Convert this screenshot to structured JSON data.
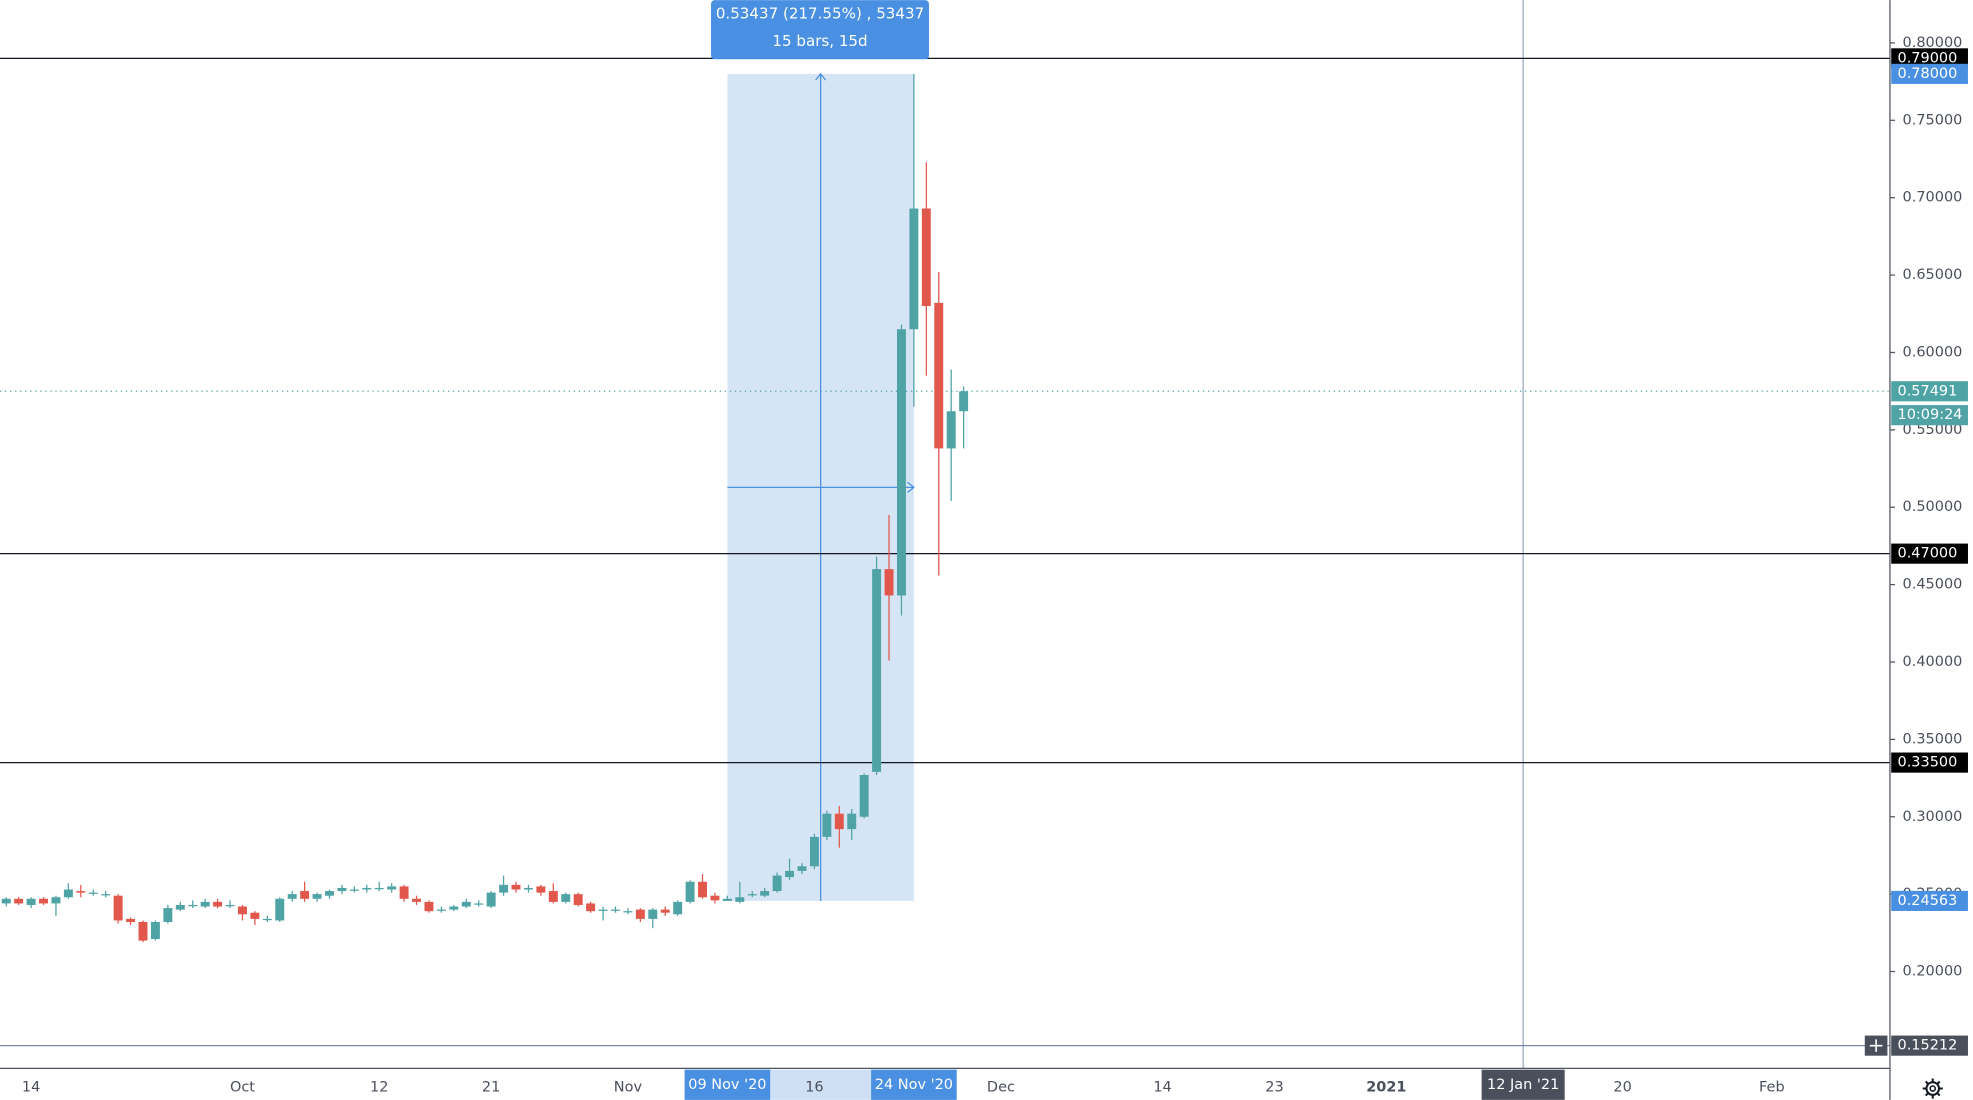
{
  "chart_data": {
    "type": "candlestick",
    "categories": [
      null,
      null,
      "14",
      null,
      null,
      null,
      null,
      null,
      null,
      null,
      null,
      null,
      null,
      null,
      null,
      null,
      null,
      null,
      null,
      "Oct",
      null,
      null,
      null,
      null,
      null,
      null,
      null,
      null,
      null,
      null,
      "12",
      null,
      null,
      null,
      null,
      null,
      null,
      null,
      null,
      "21",
      null,
      null,
      null,
      null,
      null,
      null,
      null,
      null,
      null,
      null,
      "Nov",
      null,
      null,
      null,
      null,
      null,
      null,
      null,
      "09 Nov '20",
      null,
      null,
      null,
      null,
      null,
      null,
      "16",
      null,
      null,
      null,
      null,
      null,
      null,
      null,
      "24 Nov '20",
      null,
      null,
      null,
      null,
      null,
      null,
      "Dec",
      null,
      null,
      null,
      null,
      null,
      null,
      null,
      null,
      null,
      null,
      null,
      null,
      "14",
      null,
      null,
      null,
      null,
      null,
      null,
      null,
      null,
      "23",
      null,
      null,
      null,
      null,
      null,
      null,
      null,
      null,
      "2021",
      null,
      null,
      null,
      null,
      null,
      null,
      null,
      null,
      null,
      null,
      "12 Jan '21",
      null,
      null,
      null,
      null,
      null,
      null,
      null,
      "20",
      null,
      null,
      null,
      null,
      null,
      null,
      null,
      null,
      null,
      null,
      null,
      "Feb",
      null,
      null,
      null,
      null,
      null,
      null,
      null,
      null,
      null
    ],
    "open": [
      0.244,
      0.247,
      0.243,
      0.247,
      0.244,
      0.248,
      0.252,
      0.251,
      0.25,
      0.249,
      0.234,
      0.232,
      0.221,
      0.232,
      0.24,
      0.243,
      0.242,
      0.245,
      0.243,
      0.242,
      0.238,
      0.234,
      0.233,
      0.247,
      0.252,
      0.247,
      0.249,
      0.252,
      0.253,
      0.253,
      0.254,
      0.253,
      0.255,
      0.247,
      0.245,
      0.24,
      0.24,
      0.242,
      0.244,
      0.242,
      0.251,
      0.256,
      0.253,
      0.255,
      0.252,
      0.245,
      0.25,
      0.244,
      0.24,
      0.24,
      0.239,
      0.24,
      0.234,
      0.24,
      0.237,
      0.245,
      0.258,
      0.249,
      0.2456,
      0.245,
      0.25,
      0.249,
      0.252,
      0.261,
      0.265,
      0.268,
      0.287,
      0.302,
      0.292,
      0.3,
      0.329,
      0.46,
      0.443,
      0.615,
      0.693,
      0.632,
      0.538,
      0.562,
      null,
      null,
      null,
      null,
      null,
      null,
      null,
      null,
      null,
      null,
      null,
      null,
      null,
      null,
      null,
      null,
      null,
      null,
      null,
      null,
      null,
      null,
      null,
      null,
      null,
      null,
      null,
      null,
      null,
      null,
      null,
      null,
      null,
      null,
      null,
      null,
      null,
      null,
      null,
      null,
      null,
      null,
      null,
      null,
      null,
      null,
      null,
      null,
      null,
      null,
      null,
      null,
      null,
      null,
      null,
      null,
      null,
      null,
      null,
      null,
      null,
      null,
      null,
      null,
      null,
      null,
      null,
      null,
      null,
      null,
      null,
      null,
      null,
      null
    ],
    "high": [
      0.248,
      0.248,
      0.248,
      0.248,
      0.249,
      0.257,
      0.256,
      0.253,
      0.252,
      0.25,
      0.235,
      0.233,
      0.233,
      0.243,
      0.245,
      0.246,
      0.247,
      0.247,
      0.246,
      0.243,
      0.239,
      0.236,
      0.248,
      0.252,
      0.258,
      0.251,
      0.253,
      0.256,
      0.255,
      0.256,
      0.258,
      0.257,
      0.256,
      0.249,
      0.246,
      0.242,
      0.243,
      0.247,
      0.246,
      0.252,
      0.262,
      0.258,
      0.256,
      0.256,
      0.257,
      0.251,
      0.251,
      0.245,
      0.242,
      0.242,
      0.241,
      0.241,
      0.241,
      0.242,
      0.246,
      0.259,
      0.263,
      0.251,
      0.249,
      0.258,
      0.252,
      0.254,
      0.264,
      0.273,
      0.27,
      0.289,
      0.304,
      0.307,
      0.305,
      0.328,
      0.468,
      0.495,
      0.618,
      0.78,
      0.723,
      0.652,
      0.589,
      0.578,
      null,
      null,
      null,
      null,
      null,
      null,
      null,
      null,
      null,
      null,
      null,
      null,
      null,
      null,
      null,
      null,
      null,
      null,
      null,
      null,
      null,
      null,
      null,
      null,
      null,
      null,
      null,
      null,
      null,
      null,
      null,
      null,
      null,
      null,
      null,
      null,
      null,
      null,
      null,
      null,
      null,
      null,
      null,
      null,
      null,
      null,
      null,
      null,
      null,
      null,
      null,
      null,
      null,
      null,
      null,
      null,
      null,
      null,
      null,
      null,
      null,
      null,
      null,
      null,
      null,
      null,
      null,
      null,
      null,
      null,
      null,
      null,
      null,
      null
    ],
    "low": [
      0.242,
      0.243,
      0.241,
      0.243,
      0.236,
      0.247,
      0.248,
      0.249,
      0.248,
      0.231,
      0.23,
      0.219,
      0.22,
      0.231,
      0.239,
      0.241,
      0.241,
      0.241,
      0.241,
      0.233,
      0.23,
      0.232,
      0.232,
      0.245,
      0.245,
      0.245,
      0.247,
      0.25,
      0.251,
      0.251,
      0.252,
      0.251,
      0.245,
      0.243,
      0.238,
      0.238,
      0.239,
      0.241,
      0.242,
      0.241,
      0.249,
      0.251,
      0.251,
      0.249,
      0.244,
      0.244,
      0.242,
      0.238,
      0.233,
      0.238,
      0.237,
      0.232,
      0.228,
      0.236,
      0.236,
      0.244,
      0.247,
      0.244,
      0.2456,
      0.244,
      0.248,
      0.248,
      0.251,
      0.259,
      0.263,
      0.266,
      0.285,
      0.28,
      0.285,
      0.299,
      0.327,
      0.401,
      0.43,
      0.565,
      0.585,
      0.456,
      0.504,
      0.538,
      null,
      null,
      null,
      null,
      null,
      null,
      null,
      null,
      null,
      null,
      null,
      null,
      null,
      null,
      null,
      null,
      null,
      null,
      null,
      null,
      null,
      null,
      null,
      null,
      null,
      null,
      null,
      null,
      null,
      null,
      null,
      null,
      null,
      null,
      null,
      null,
      null,
      null,
      null,
      null,
      null,
      null,
      null,
      null,
      null,
      null,
      null,
      null,
      null,
      null,
      null,
      null,
      null,
      null,
      null,
      null,
      null,
      null,
      null,
      null,
      null,
      null,
      null,
      null,
      null,
      null,
      null,
      null,
      null,
      null,
      null,
      null,
      null,
      null
    ],
    "close": [
      0.247,
      0.244,
      0.247,
      0.244,
      0.248,
      0.253,
      0.251,
      0.251,
      0.25,
      0.233,
      0.232,
      0.22,
      0.232,
      0.241,
      0.243,
      0.243,
      0.245,
      0.242,
      0.243,
      0.237,
      0.234,
      0.234,
      0.247,
      0.25,
      0.247,
      0.25,
      0.252,
      0.254,
      0.253,
      0.254,
      0.254,
      0.255,
      0.247,
      0.245,
      0.239,
      0.24,
      0.242,
      0.245,
      0.244,
      0.251,
      0.256,
      0.253,
      0.254,
      0.251,
      0.245,
      0.25,
      0.243,
      0.239,
      0.24,
      0.24,
      0.239,
      0.234,
      0.24,
      0.238,
      0.245,
      0.258,
      0.248,
      0.246,
      0.247,
      0.248,
      0.25,
      0.252,
      0.262,
      0.265,
      0.268,
      0.287,
      0.302,
      0.292,
      0.302,
      0.327,
      0.46,
      0.443,
      0.615,
      0.693,
      0.63,
      0.538,
      0.562,
      0.57491,
      null,
      null,
      null,
      null,
      null,
      null,
      null,
      null,
      null,
      null,
      null,
      null,
      null,
      null,
      null,
      null,
      null,
      null,
      null,
      null,
      null,
      null,
      null,
      null,
      null,
      null,
      null,
      null,
      null,
      null,
      null,
      null,
      null,
      null,
      null,
      null,
      null,
      null,
      null,
      null,
      null,
      null,
      null,
      null,
      null,
      null,
      null,
      null,
      null,
      null,
      null,
      null,
      null,
      null,
      null,
      null,
      null,
      null,
      null,
      null,
      null,
      null,
      null,
      null,
      null,
      null,
      null,
      null,
      null,
      null,
      null,
      null,
      null,
      null
    ],
    "up_color": "#4fa3a5",
    "down_color": "#e2574c",
    "ylim": [
      0.1374,
      0.82764
    ],
    "yticks": [
      {
        "value": 0.2,
        "label": "0.20000"
      },
      {
        "value": 0.25,
        "label": "0.25000"
      },
      {
        "value": 0.3,
        "label": "0.30000"
      },
      {
        "value": 0.35,
        "label": "0.35000"
      },
      {
        "value": 0.4,
        "label": "0.40000"
      },
      {
        "value": 0.45,
        "label": "0.45000"
      },
      {
        "value": 0.5,
        "label": "0.50000"
      },
      {
        "value": 0.55,
        "label": "0.55000"
      },
      {
        "value": 0.6,
        "label": "0.60000"
      },
      {
        "value": 0.65,
        "label": "0.65000"
      },
      {
        "value": 0.7,
        "label": "0.70000"
      },
      {
        "value": 0.75,
        "label": "0.75000"
      },
      {
        "value": 0.8,
        "label": "0.80000"
      }
    ],
    "grid": false,
    "levels": [
      {
        "value": 0.79,
        "label": "0.79000",
        "color": "#131722"
      },
      {
        "value": 0.47,
        "label": "0.47000",
        "color": "#131722"
      },
      {
        "value": 0.335,
        "label": "0.33500",
        "color": "#131722"
      },
      {
        "value": 0.15212,
        "label": "0.15212",
        "color": "#7b8aa6"
      }
    ],
    "last_price": {
      "value": 0.57491,
      "label": "0.57491",
      "countdown": "10:09:24",
      "color": "#4fa3a5"
    },
    "measure": {
      "text": [
        "0.53437 (217.55%) , 53437",
        "15 bars, 15d"
      ],
      "from": "09 Nov '20",
      "to": "24 Nov '20",
      "top": {
        "value": 0.78,
        "label": "0.78000"
      },
      "bottom": {
        "value": 0.24563,
        "label": "0.24563"
      },
      "color": "#4a90e2"
    },
    "crosshair": "12 Jan '21"
  }
}
